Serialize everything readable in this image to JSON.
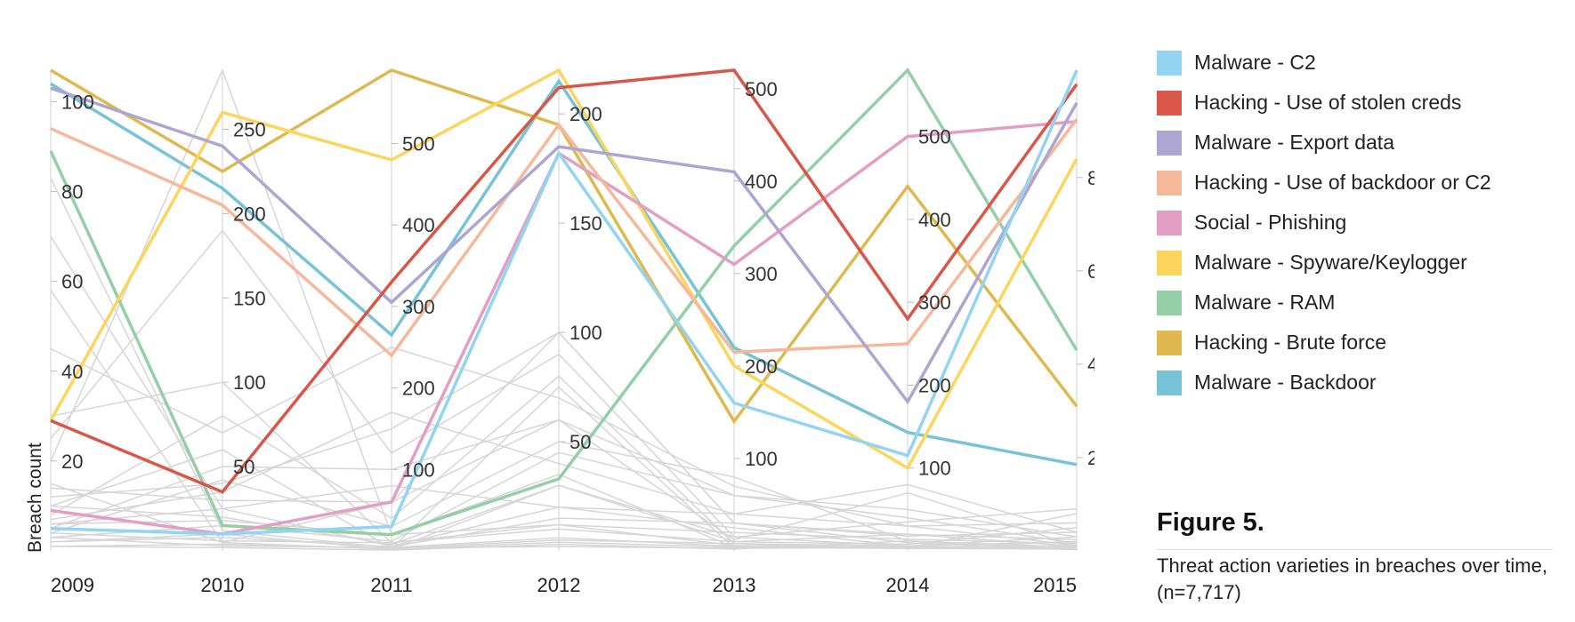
{
  "chart_data": {
    "type": "line",
    "subtype": "parallel-coordinates (each year has its own vertical axis)",
    "ylabel": "Breach count",
    "x": [
      "2009",
      "2010",
      "2011",
      "2012",
      "2013",
      "2014",
      "2015"
    ],
    "axes": [
      {
        "year": "2009",
        "ylim": [
          0,
          107
        ],
        "ticks": [
          20,
          40,
          60,
          80,
          100
        ]
      },
      {
        "year": "2010",
        "ylim": [
          0,
          285
        ],
        "ticks": [
          50,
          100,
          150,
          200,
          250
        ]
      },
      {
        "year": "2011",
        "ylim": [
          0,
          590
        ],
        "ticks": [
          100,
          200,
          300,
          400,
          500
        ]
      },
      {
        "year": "2012",
        "ylim": [
          0,
          220
        ],
        "ticks": [
          50,
          100,
          150,
          200
        ]
      },
      {
        "year": "2013",
        "ylim": [
          0,
          520
        ],
        "ticks": [
          100,
          200,
          300,
          400,
          500
        ]
      },
      {
        "year": "2014",
        "ylim": [
          0,
          580
        ],
        "ticks": [
          100,
          200,
          300,
          400,
          500
        ]
      },
      {
        "year": "2015",
        "ylim": [
          0,
          1030
        ],
        "ticks": [
          200,
          400,
          600,
          800
        ]
      }
    ],
    "series": [
      {
        "name": "Malware - C2",
        "color": "#93d4f2",
        "values": [
          5,
          10,
          30,
          182,
          160,
          115,
          1030
        ]
      },
      {
        "name": "Hacking - Use of stolen creds",
        "color": "#d95749",
        "values": [
          29,
          35,
          330,
          212,
          520,
          280,
          1000
        ]
      },
      {
        "name": "Malware - Export data",
        "color": "#aea6d2",
        "values": [
          103,
          240,
          305,
          185,
          410,
          180,
          960
        ]
      },
      {
        "name": "Hacking - Use of backdoor or C2",
        "color": "#f5b89a",
        "values": [
          94,
          205,
          240,
          195,
          215,
          250,
          925
        ]
      },
      {
        "name": "Social - Phishing",
        "color": "#e39ec4",
        "values": [
          9,
          10,
          60,
          182,
          310,
          500,
          920
        ]
      },
      {
        "name": "Malware - Spyware/Keylogger",
        "color": "#fbd55c",
        "values": [
          29,
          260,
          480,
          220,
          200,
          100,
          840
        ]
      },
      {
        "name": "Malware - RAM",
        "color": "#94cfa7",
        "values": [
          89,
          15,
          20,
          33,
          330,
          580,
          430
        ]
      },
      {
        "name": "Hacking - Brute force",
        "color": "#e0b94e",
        "values": [
          107,
          225,
          590,
          195,
          140,
          440,
          310
        ]
      },
      {
        "name": "Malware - Backdoor",
        "color": "#77c3d8",
        "values": [
          104,
          215,
          265,
          215,
          220,
          143,
          185
        ]
      }
    ],
    "background_series_color": "#d6d6d6",
    "background_series": [
      [
        83,
        12,
        4,
        2,
        3,
        4,
        6
      ],
      [
        70,
        25,
        6,
        20,
        40,
        30,
        60
      ],
      [
        58,
        5,
        60,
        100,
        30,
        10,
        5
      ],
      [
        45,
        70,
        250,
        70,
        70,
        30,
        12
      ],
      [
        30,
        100,
        10,
        12,
        6,
        4,
        80
      ],
      [
        25,
        190,
        120,
        90,
        15,
        6,
        20
      ],
      [
        20,
        285,
        20,
        35,
        4,
        3,
        4
      ],
      [
        14,
        30,
        60,
        60,
        60,
        50,
        30
      ],
      [
        12,
        40,
        150,
        100,
        30,
        20,
        10
      ],
      [
        10,
        20,
        8,
        30,
        10,
        8,
        50
      ],
      [
        8,
        80,
        40,
        80,
        8,
        6,
        30
      ],
      [
        7,
        35,
        170,
        40,
        40,
        80,
        40
      ],
      [
        6,
        18,
        20,
        12,
        20,
        14,
        16
      ],
      [
        5,
        50,
        100,
        60,
        12,
        70,
        10
      ],
      [
        4,
        6,
        10,
        10,
        10,
        20,
        24
      ],
      [
        4,
        42,
        30,
        50,
        80,
        12,
        8
      ],
      [
        3,
        15,
        12,
        45,
        60,
        40,
        16
      ],
      [
        3,
        3,
        4,
        6,
        5,
        5,
        6
      ],
      [
        2,
        10,
        2,
        30,
        15,
        35,
        90
      ],
      [
        2,
        8,
        5,
        15,
        30,
        18,
        40
      ],
      [
        1,
        4,
        3,
        5,
        8,
        3,
        12
      ],
      [
        1,
        2,
        1,
        3,
        2,
        12,
        4
      ],
      [
        10,
        60,
        3,
        75,
        3,
        5,
        3
      ],
      [
        15,
        5,
        2,
        4,
        4,
        3,
        20
      ],
      [
        6,
        25,
        80,
        20,
        25,
        6,
        4
      ]
    ]
  },
  "legend": [
    {
      "label": "Malware - C2",
      "color": "#93d4f2"
    },
    {
      "label": "Hacking - Use of stolen creds",
      "color": "#d95749"
    },
    {
      "label": "Malware - Export data",
      "color": "#aea6d2"
    },
    {
      "label": "Hacking - Use of backdoor or C2",
      "color": "#f5b89a"
    },
    {
      "label": "Social - Phishing",
      "color": "#e39ec4"
    },
    {
      "label": "Malware - Spyware/Keylogger",
      "color": "#fbd55c"
    },
    {
      "label": "Malware - RAM",
      "color": "#94cfa7"
    },
    {
      "label": "Hacking - Brute force",
      "color": "#e0b94e"
    },
    {
      "label": "Malware - Backdoor",
      "color": "#77c3d8"
    }
  ],
  "figure": {
    "title": "Figure 5.",
    "caption": "Threat action varieties in breaches over time, (n=7,717)"
  }
}
